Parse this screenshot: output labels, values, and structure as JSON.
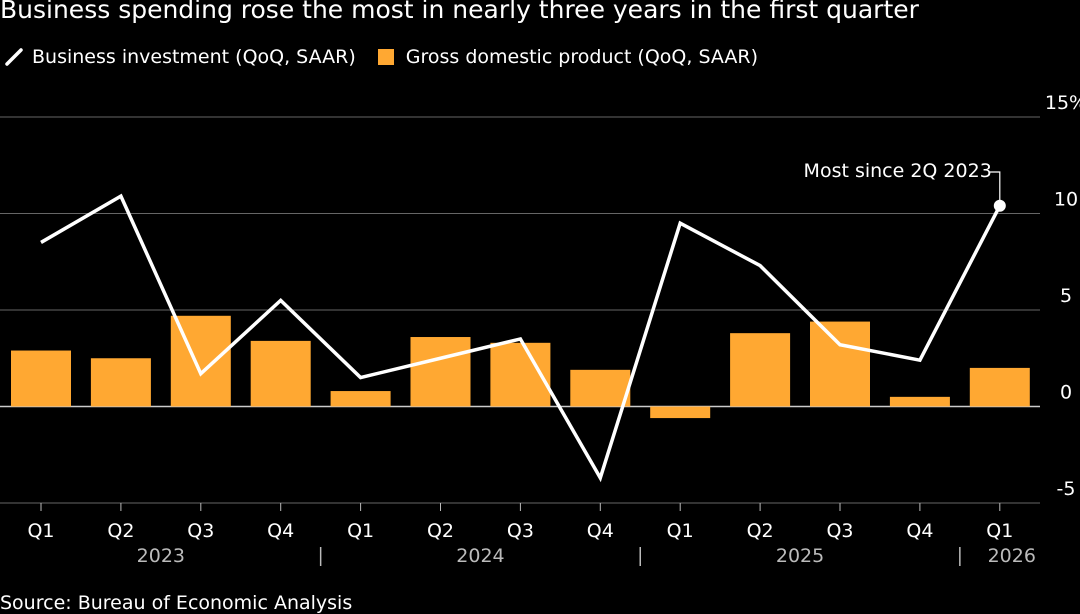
{
  "title": "Business spending rose the most in nearly three years in the first quarter",
  "source": "Source: Bureau of Economic Analysis",
  "colors": {
    "line": "#ffffff",
    "bar": "#ffa832",
    "grid": "#666666",
    "background": "#000000",
    "text": "#ffffff",
    "muted": "#bbbbbb"
  },
  "chart_data": {
    "type": "bar",
    "title": "Business spending rose the most in nearly three years in the first quarter",
    "categories": [
      "Q1",
      "Q2",
      "Q3",
      "Q4",
      "Q1",
      "Q2",
      "Q3",
      "Q4",
      "Q1",
      "Q2",
      "Q3",
      "Q4",
      "Q1"
    ],
    "year_labels": [
      "2023",
      "2024",
      "2025",
      "2026"
    ],
    "series": [
      {
        "name": "Business investment (QoQ, SAAR)",
        "type": "line",
        "values": [
          8.5,
          10.9,
          1.7,
          5.5,
          1.5,
          2.5,
          3.5,
          -3.7,
          9.5,
          7.3,
          3.2,
          2.4,
          10.4
        ]
      },
      {
        "name": "Gross domestic product (QoQ, SAAR)",
        "type": "bar",
        "values": [
          2.9,
          2.5,
          4.7,
          3.4,
          0.8,
          3.6,
          3.3,
          1.9,
          -0.6,
          3.8,
          4.4,
          0.5,
          2.0
        ]
      }
    ],
    "y_ticks": [
      "-5",
      "0",
      "5",
      "10",
      "15%"
    ],
    "ylim": [
      -5,
      15
    ],
    "grid": true,
    "legend": "top-left",
    "annotation": {
      "text": "Most since 2Q 2023",
      "index": 12
    }
  }
}
